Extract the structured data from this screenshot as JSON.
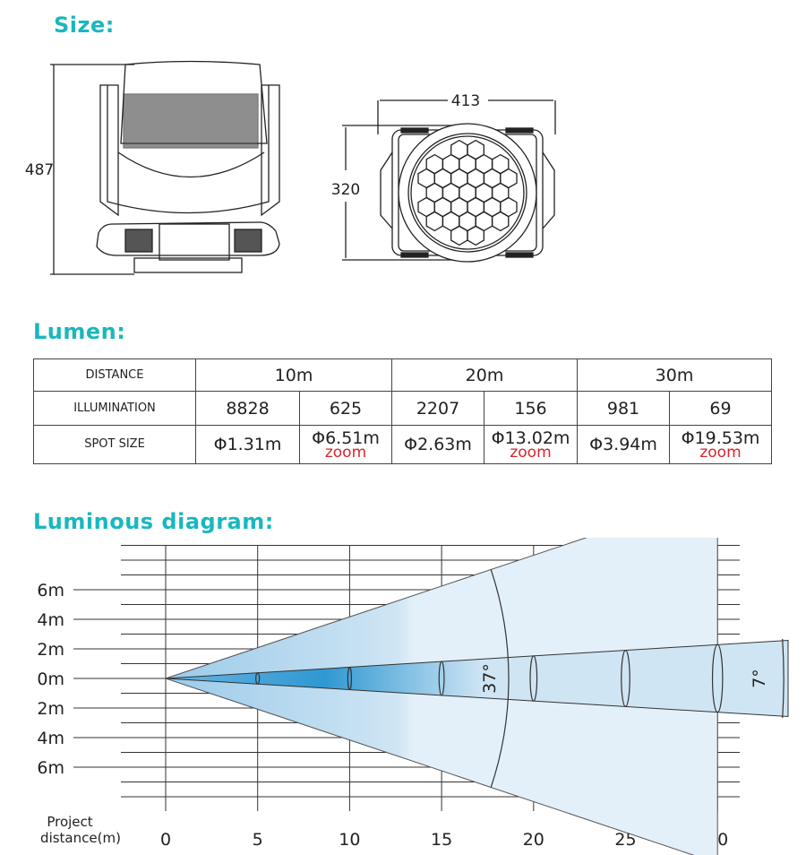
{
  "size": {
    "heading": "Size:",
    "height_dim": "487",
    "width_dim": "413",
    "depth_dim": "320"
  },
  "lumen": {
    "heading": "Lumen:",
    "row_labels": [
      "DISTANCE",
      "ILLUMINATION",
      "SPOT SIZE"
    ],
    "distances": [
      "10m",
      "20m",
      "30m"
    ],
    "illumination": [
      "8828",
      "625",
      "2207",
      "156",
      "981",
      "69"
    ],
    "spot_size": [
      "Φ1.31m",
      "Φ6.51m",
      "Φ2.63m",
      "Φ13.02m",
      "Φ3.94m",
      "Φ19.53m"
    ],
    "zoom_note": "zoom"
  },
  "diagram": {
    "heading": "Luminous diagram:",
    "y_labels": [
      "6m",
      "4m",
      "2m",
      "0m",
      "2m",
      "4m",
      "6m"
    ],
    "x_axis_label_line1": "Project",
    "x_axis_label_line2": "distance(m)",
    "x_ticks": [
      "0",
      "5",
      "10",
      "15",
      "20",
      "25",
      "30"
    ],
    "wide_angle": "37°",
    "narrow_angle": "7°",
    "colors": {
      "beam_dark": "#3a9fd6",
      "beam_light": "#dcecf7",
      "heading": "#1ab7bf"
    }
  }
}
